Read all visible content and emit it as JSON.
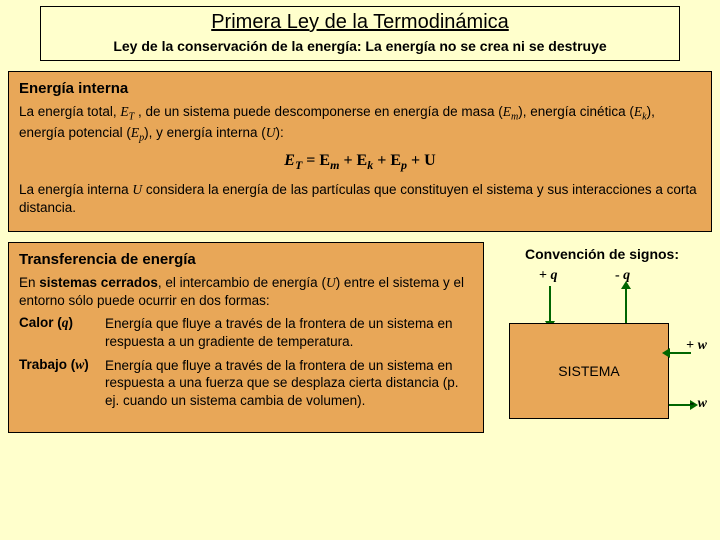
{
  "title": {
    "main": "Primera Ley de la Termodinámica",
    "sub": "Ley de la conservación de la energía: La energía no se crea ni se destruye"
  },
  "panel1": {
    "heading": "Energía interna",
    "para1_a": "La energía total, ",
    "para1_b": ", de un sistema puede descomponerse en energía de masa (",
    "para1_c": "), energía cinética (",
    "para1_d": "), energía potencial (",
    "para1_e": "), y energía interna (",
    "para1_f": "):",
    "equation_lhs": "E",
    "equation_rhs1": " = E",
    "equation_rhs2": " + E",
    "equation_rhs3": " + E",
    "equation_rhs4": " + U",
    "sub_T": "T",
    "sub_m": "m",
    "sub_k": "k",
    "sub_p": "p",
    "var_U": "U",
    "var_ET": "E",
    "var_Em": "E",
    "var_Ek": "E",
    "var_Ep": "E",
    "para2_a": "La energía interna ",
    "para2_b": " considera la energía de las partículas que constituyen el sistema y sus interacciones a corta distancia."
  },
  "panel2": {
    "heading": "Transferencia de energía",
    "intro_a": "En ",
    "intro_bold": "sistemas cerrados",
    "intro_b": ", el intercambio de energía (",
    "intro_c": ") entre el sistema y el entorno sólo puede ocurrir en dos formas:",
    "calor_term_a": "Calor (",
    "calor_var": "q",
    "calor_term_b": ")",
    "calor_body": "Energía que fluye a través de la frontera de un sistema en respuesta a un gradiente de temperatura.",
    "trabajo_term_a": "Trabajo (",
    "trabajo_var": "w",
    "trabajo_term_b": ")",
    "trabajo_body": "Energía que fluye a través de la frontera de un sistema en respuesta a una fuerza que se desplaza cierta distancia (p. ej. cuando un sistema cambia de volumen)."
  },
  "diagram": {
    "conv_title": "Convención de signos:",
    "plus_q": "+ q",
    "minus_q": "- q",
    "plus_w": "+ w",
    "minus_w": "- w",
    "sistema": "SISTEMA",
    "colors": {
      "panel_bg": "#e8a758",
      "page_bg": "#ffffcc",
      "arrow": "#006600",
      "border": "#000000"
    }
  }
}
